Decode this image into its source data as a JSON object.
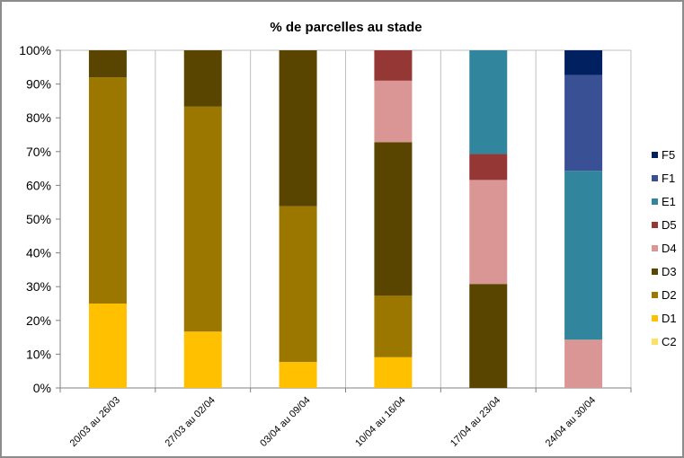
{
  "chart_data": {
    "type": "bar",
    "stacked": "percent",
    "title": "% de parcelles au stade",
    "xlabel": "",
    "ylabel": "",
    "ylim": [
      0,
      100
    ],
    "y_ticks": [
      "0%",
      "10%",
      "20%",
      "30%",
      "40%",
      "50%",
      "60%",
      "70%",
      "80%",
      "90%",
      "100%"
    ],
    "categories": [
      "20/03 au 26/03",
      "27/03 au 02/04",
      "03/04 au 09/04",
      "10/04 au 16/04",
      "17/04 au 23/04",
      "24/04 au 30/04"
    ],
    "grid": "vertical",
    "legend_position": "right",
    "series": [
      {
        "name": "C2",
        "color": "#FFE066",
        "values": [
          0,
          0,
          0,
          0,
          0,
          0
        ]
      },
      {
        "name": "D1",
        "color": "#FFC000",
        "values": [
          25,
          16.7,
          7.7,
          9.1,
          0,
          0
        ]
      },
      {
        "name": "D2",
        "color": "#9C7700",
        "values": [
          67,
          66.6,
          46.1,
          18.2,
          0,
          0
        ]
      },
      {
        "name": "D3",
        "color": "#594500",
        "values": [
          8,
          16.7,
          46.2,
          45.5,
          30.8,
          0
        ]
      },
      {
        "name": "D4",
        "color": "#DA9694",
        "values": [
          0,
          0,
          0,
          18.2,
          30.8,
          14.3
        ]
      },
      {
        "name": "D5",
        "color": "#953735",
        "values": [
          0,
          0,
          0,
          9.0,
          7.7,
          0
        ]
      },
      {
        "name": "E1",
        "color": "#31859C",
        "values": [
          0,
          0,
          0,
          0,
          30.7,
          50.0
        ]
      },
      {
        "name": "F1",
        "color": "#3A5095",
        "values": [
          0,
          0,
          0,
          0,
          0,
          28.4
        ]
      },
      {
        "name": "F5",
        "color": "#002060",
        "values": [
          0,
          0,
          0,
          0,
          0,
          7.3
        ]
      }
    ]
  }
}
